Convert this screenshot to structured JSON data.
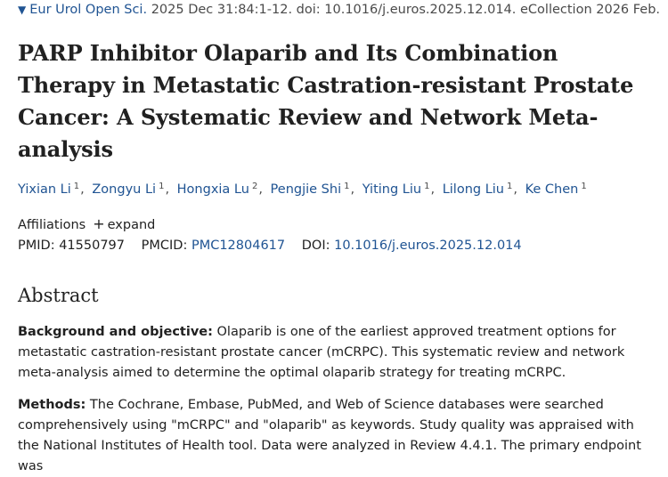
{
  "citation": {
    "journal": "Eur Urol Open Sci.",
    "details": "2025 Dec 31:84:1-12. doi: 10.1016/j.euros.2025.12.014. eCollection 2026 Feb."
  },
  "title": {
    "line1": "PARP Inhibitor Olaparib and Its Combination",
    "line2": "Therapy in Metastatic Castration-resistant Prostate",
    "line3": "Cancer: A Systematic Review and Network Meta-",
    "line4": "analysis"
  },
  "authors": [
    {
      "name": "Yixian Li",
      "aff": "1"
    },
    {
      "name": "Zongyu Li",
      "aff": "1"
    },
    {
      "name": "Hongxia Lu",
      "aff": "2"
    },
    {
      "name": "Pengjie Shi",
      "aff": "1"
    },
    {
      "name": "Yiting Liu",
      "aff": "1"
    },
    {
      "name": "Lilong Liu",
      "aff": "1"
    },
    {
      "name": "Ke Chen",
      "aff": "1"
    }
  ],
  "affiliations": {
    "label": "Affiliations",
    "plus": "+",
    "expand": "expand"
  },
  "ids": {
    "pmid_label": "PMID:",
    "pmid": "41550797",
    "pmcid_label": "PMCID:",
    "pmcid": "PMC12804617",
    "doi_label": "DOI:",
    "doi": "10.1016/j.euros.2025.12.014"
  },
  "abstract": {
    "heading": "Abstract",
    "background_label": "Background and objective:",
    "background_text": "Olaparib is one of the earliest approved treatment options for metastatic castration-resistant prostate cancer (mCRPC). This systematic review and network meta-analysis aimed to determine the optimal olaparib strategy for treating mCRPC.",
    "methods_label": "Methods:",
    "methods_text": "The Cochrane, Embase, PubMed, and Web of Science databases were searched comprehensively using \"mCRPC\" and \"olaparib\" as keywords. Study quality was appraised with the National Institutes of Health tool. Data were analyzed in Review 4.4.1. The primary endpoint was"
  },
  "colors": {
    "link": "#205493",
    "text": "#212121",
    "muted": "#4a4a4a"
  }
}
